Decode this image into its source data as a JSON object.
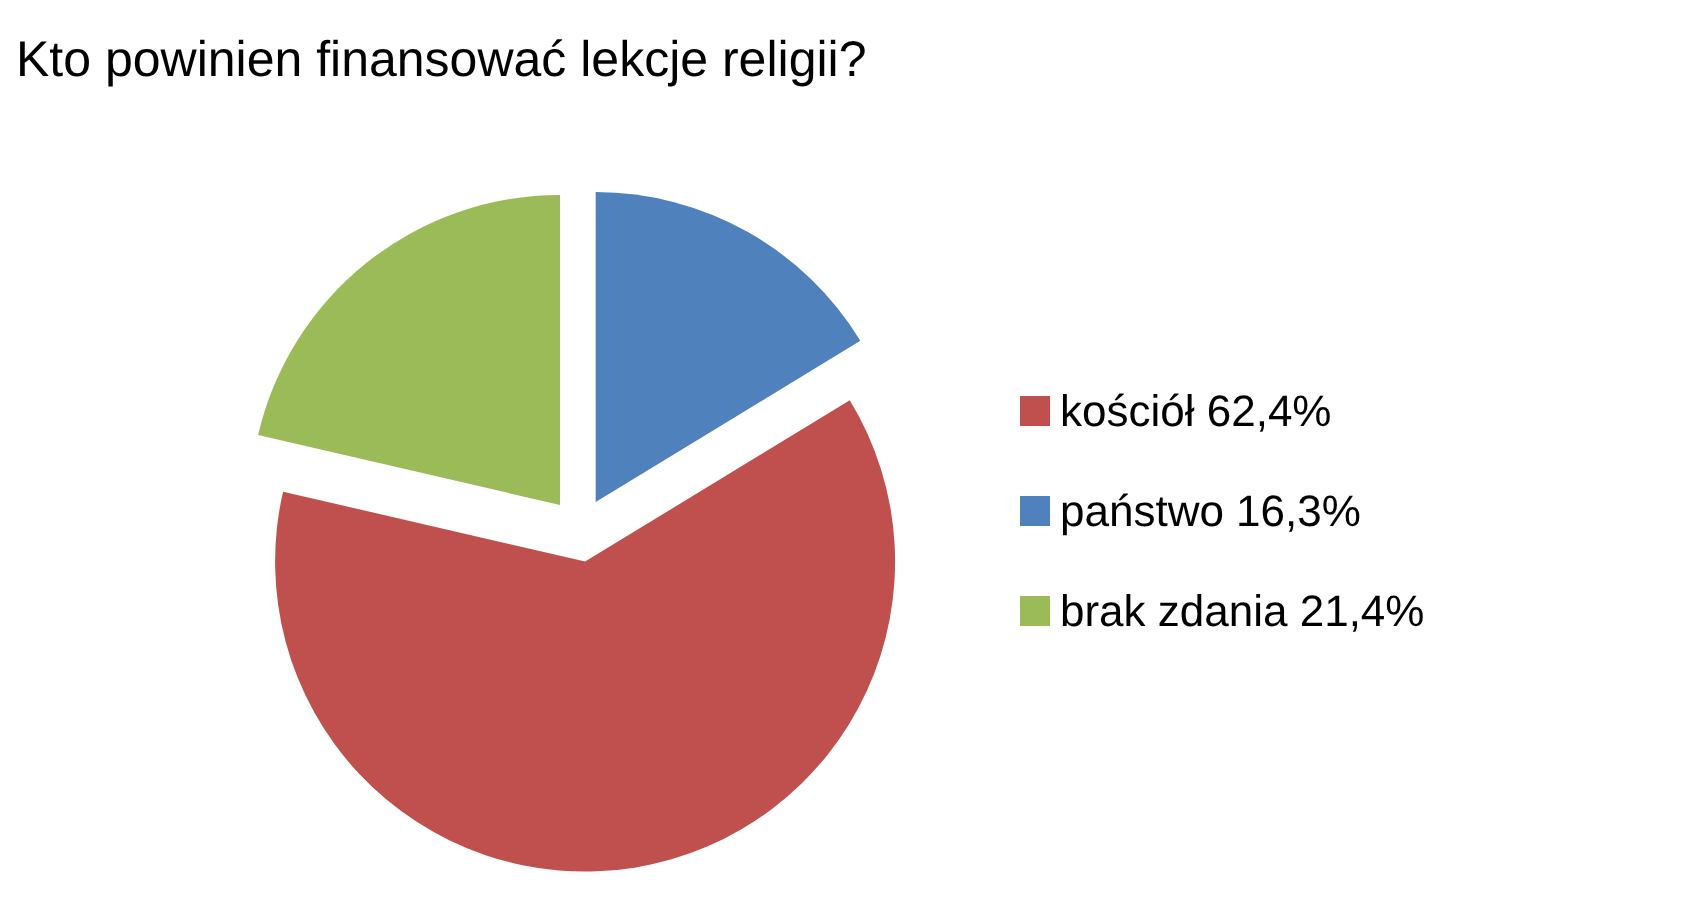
{
  "chart_data": {
    "type": "pie",
    "title": "Kto powinien finansować lekcje religii?",
    "categories": [
      "kościół 62,4%",
      "państwo 16,3%",
      "brak zdania 21,4%"
    ],
    "values": [
      62.4,
      16.3,
      21.4
    ],
    "colors": [
      "#c0504d",
      "#4f81bd",
      "#9bbb59"
    ],
    "legend": "right"
  }
}
